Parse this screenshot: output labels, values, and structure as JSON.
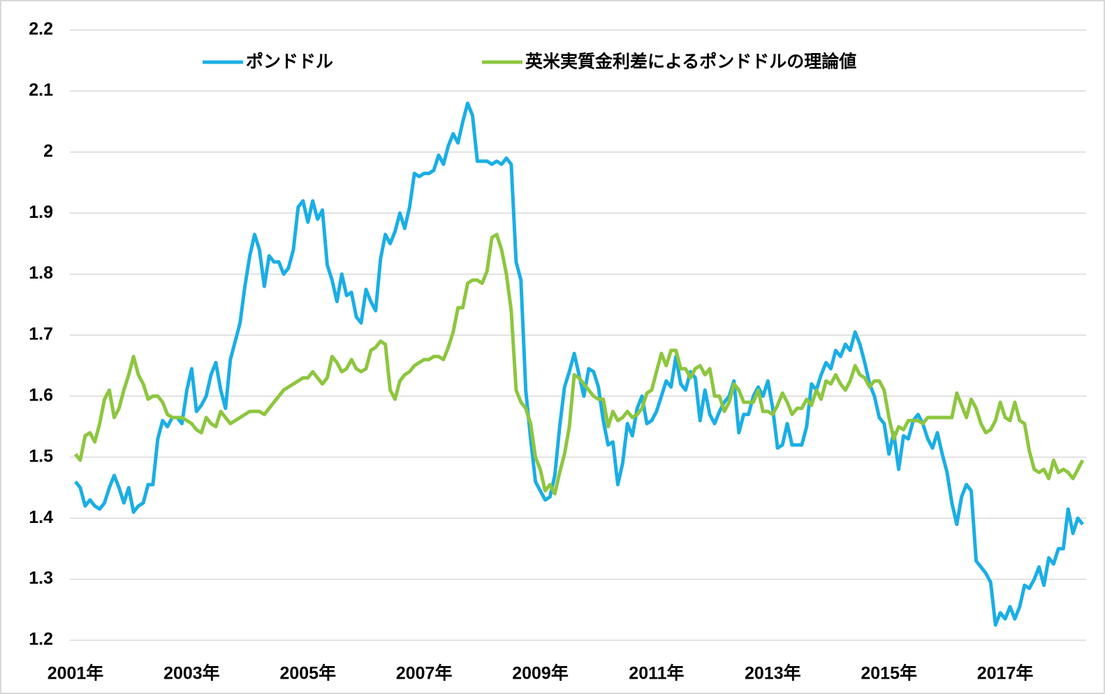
{
  "chart_data": {
    "type": "line",
    "categories": [
      "2001年",
      null,
      null,
      null,
      null,
      null,
      null,
      null,
      null,
      null,
      null,
      null,
      null,
      null,
      null,
      null,
      null,
      null,
      null,
      null,
      null,
      null,
      null,
      null,
      "2003年",
      null,
      null,
      null,
      null,
      null,
      null,
      null,
      null,
      null,
      null,
      null,
      null,
      null,
      null,
      null,
      null,
      null,
      null,
      null,
      null,
      null,
      null,
      null,
      "2005年",
      null,
      null,
      null,
      null,
      null,
      null,
      null,
      null,
      null,
      null,
      null,
      null,
      null,
      null,
      null,
      null,
      null,
      null,
      null,
      null,
      null,
      null,
      null,
      "2007年",
      null,
      null,
      null,
      null,
      null,
      null,
      null,
      null,
      null,
      null,
      null,
      null,
      null,
      null,
      null,
      null,
      null,
      null,
      null,
      null,
      null,
      null,
      null,
      "2009年",
      null,
      null,
      null,
      null,
      null,
      null,
      null,
      null,
      null,
      null,
      null,
      null,
      null,
      null,
      null,
      null,
      null,
      null,
      null,
      null,
      null,
      null,
      null,
      "2011年",
      null,
      null,
      null,
      null,
      null,
      null,
      null,
      null,
      null,
      null,
      null,
      null,
      null,
      null,
      null,
      null,
      null,
      null,
      null,
      null,
      null,
      null,
      null,
      "2013年",
      null,
      null,
      null,
      null,
      null,
      null,
      null,
      null,
      null,
      null,
      null,
      null,
      null,
      null,
      null,
      null,
      null,
      null,
      null,
      null,
      null,
      null,
      null,
      "2015年",
      null,
      null,
      null,
      null,
      null,
      null,
      null,
      null,
      null,
      null,
      null,
      null,
      null,
      null,
      null,
      null,
      null,
      null,
      null,
      null,
      null,
      null,
      null,
      "2017年",
      null,
      null,
      null,
      null,
      null,
      null,
      null,
      null,
      null,
      null,
      null,
      null,
      null,
      null,
      null,
      null
    ],
    "series": [
      {
        "name": "ポンドドル",
        "color": "#1aaee5",
        "values": [
          1.46,
          1.45,
          1.42,
          1.43,
          1.42,
          1.415,
          1.425,
          1.45,
          1.47,
          1.45,
          1.425,
          1.45,
          1.41,
          1.42,
          1.425,
          1.455,
          1.455,
          1.53,
          1.56,
          1.55,
          1.565,
          1.565,
          1.555,
          1.61,
          1.645,
          1.575,
          1.585,
          1.6,
          1.635,
          1.655,
          1.61,
          1.58,
          1.66,
          1.69,
          1.72,
          1.78,
          1.83,
          1.865,
          1.84,
          1.78,
          1.83,
          1.82,
          1.82,
          1.8,
          1.81,
          1.84,
          1.91,
          1.92,
          1.885,
          1.92,
          1.89,
          1.905,
          1.815,
          1.79,
          1.755,
          1.8,
          1.765,
          1.77,
          1.73,
          1.72,
          1.775,
          1.755,
          1.74,
          1.825,
          1.865,
          1.85,
          1.87,
          1.9,
          1.875,
          1.91,
          1.965,
          1.96,
          1.965,
          1.965,
          1.97,
          1.995,
          1.98,
          2.01,
          2.03,
          2.015,
          2.05,
          2.08,
          2.06,
          1.985,
          1.985,
          1.985,
          1.98,
          1.985,
          1.98,
          1.99,
          1.98,
          1.82,
          1.79,
          1.61,
          1.53,
          1.46,
          1.445,
          1.43,
          1.435,
          1.47,
          1.55,
          1.615,
          1.64,
          1.67,
          1.635,
          1.6,
          1.645,
          1.64,
          1.615,
          1.56,
          1.52,
          1.525,
          1.455,
          1.49,
          1.555,
          1.535,
          1.58,
          1.6,
          1.555,
          1.56,
          1.575,
          1.6,
          1.625,
          1.615,
          1.665,
          1.62,
          1.61,
          1.64,
          1.63,
          1.56,
          1.61,
          1.57,
          1.555,
          1.575,
          1.59,
          1.6,
          1.625,
          1.54,
          1.57,
          1.57,
          1.6,
          1.615,
          1.6,
          1.625,
          1.58,
          1.515,
          1.52,
          1.555,
          1.52,
          1.52,
          1.52,
          1.55,
          1.62,
          1.61,
          1.635,
          1.655,
          1.645,
          1.675,
          1.665,
          1.685,
          1.675,
          1.705,
          1.685,
          1.655,
          1.62,
          1.6,
          1.565,
          1.555,
          1.505,
          1.54,
          1.48,
          1.535,
          1.53,
          1.56,
          1.57,
          1.555,
          1.53,
          1.515,
          1.54,
          1.505,
          1.475,
          1.425,
          1.39,
          1.435,
          1.455,
          1.445,
          1.33,
          1.32,
          1.31,
          1.295,
          1.225,
          1.245,
          1.235,
          1.255,
          1.235,
          1.255,
          1.29,
          1.285,
          1.3,
          1.32,
          1.29,
          1.335,
          1.325,
          1.35,
          1.35,
          1.415,
          1.375,
          1.4,
          1.39
        ]
      },
      {
        "name": "英米実質金利差によるポンドドルの理論値",
        "color": "#8dc63f",
        "values": [
          1.505,
          1.495,
          1.535,
          1.54,
          1.525,
          1.555,
          1.595,
          1.61,
          1.565,
          1.58,
          1.61,
          1.635,
          1.665,
          1.635,
          1.62,
          1.595,
          1.6,
          1.6,
          1.59,
          1.57,
          1.565,
          1.565,
          1.565,
          1.56,
          1.555,
          1.545,
          1.54,
          1.565,
          1.555,
          1.55,
          1.575,
          1.565,
          1.555,
          1.56,
          1.565,
          1.57,
          1.575,
          1.575,
          1.575,
          1.57,
          1.58,
          1.59,
          1.6,
          1.61,
          1.615,
          1.62,
          1.625,
          1.63,
          1.63,
          1.64,
          1.63,
          1.62,
          1.63,
          1.665,
          1.655,
          1.64,
          1.645,
          1.66,
          1.645,
          1.64,
          1.645,
          1.675,
          1.68,
          1.69,
          1.685,
          1.61,
          1.595,
          1.625,
          1.635,
          1.64,
          1.65,
          1.655,
          1.66,
          1.66,
          1.665,
          1.665,
          1.66,
          1.68,
          1.705,
          1.745,
          1.745,
          1.785,
          1.79,
          1.79,
          1.785,
          1.805,
          1.86,
          1.865,
          1.84,
          1.8,
          1.74,
          1.61,
          1.59,
          1.58,
          1.555,
          1.5,
          1.48,
          1.445,
          1.455,
          1.44,
          1.475,
          1.505,
          1.55,
          1.635,
          1.63,
          1.62,
          1.61,
          1.6,
          1.595,
          1.595,
          1.55,
          1.575,
          1.56,
          1.565,
          1.575,
          1.565,
          1.57,
          1.58,
          1.605,
          1.61,
          1.64,
          1.67,
          1.65,
          1.675,
          1.675,
          1.645,
          1.645,
          1.63,
          1.645,
          1.65,
          1.635,
          1.645,
          1.6,
          1.6,
          1.575,
          1.59,
          1.62,
          1.61,
          1.59,
          1.59,
          1.59,
          1.61,
          1.575,
          1.575,
          1.57,
          1.585,
          1.605,
          1.59,
          1.57,
          1.58,
          1.58,
          1.595,
          1.585,
          1.61,
          1.595,
          1.625,
          1.62,
          1.635,
          1.62,
          1.61,
          1.625,
          1.65,
          1.635,
          1.63,
          1.615,
          1.625,
          1.625,
          1.61,
          1.565,
          1.53,
          1.55,
          1.545,
          1.56,
          1.56,
          1.56,
          1.555,
          1.565,
          1.565,
          1.565,
          1.565,
          1.565,
          1.565,
          1.605,
          1.585,
          1.565,
          1.595,
          1.58,
          1.555,
          1.54,
          1.545,
          1.56,
          1.59,
          1.565,
          1.56,
          1.59,
          1.56,
          1.555,
          1.51,
          1.48,
          1.475,
          1.48,
          1.465,
          1.495,
          1.475,
          1.48,
          1.475,
          1.465,
          1.48,
          1.495
        ]
      }
    ],
    "ylim": [
      1.2,
      2.2
    ],
    "yticks": [
      1.2,
      1.3,
      1.4,
      1.5,
      1.6,
      1.7,
      1.8,
      1.9,
      2,
      2.1,
      2.2
    ],
    "grid": true,
    "legend": "top"
  }
}
